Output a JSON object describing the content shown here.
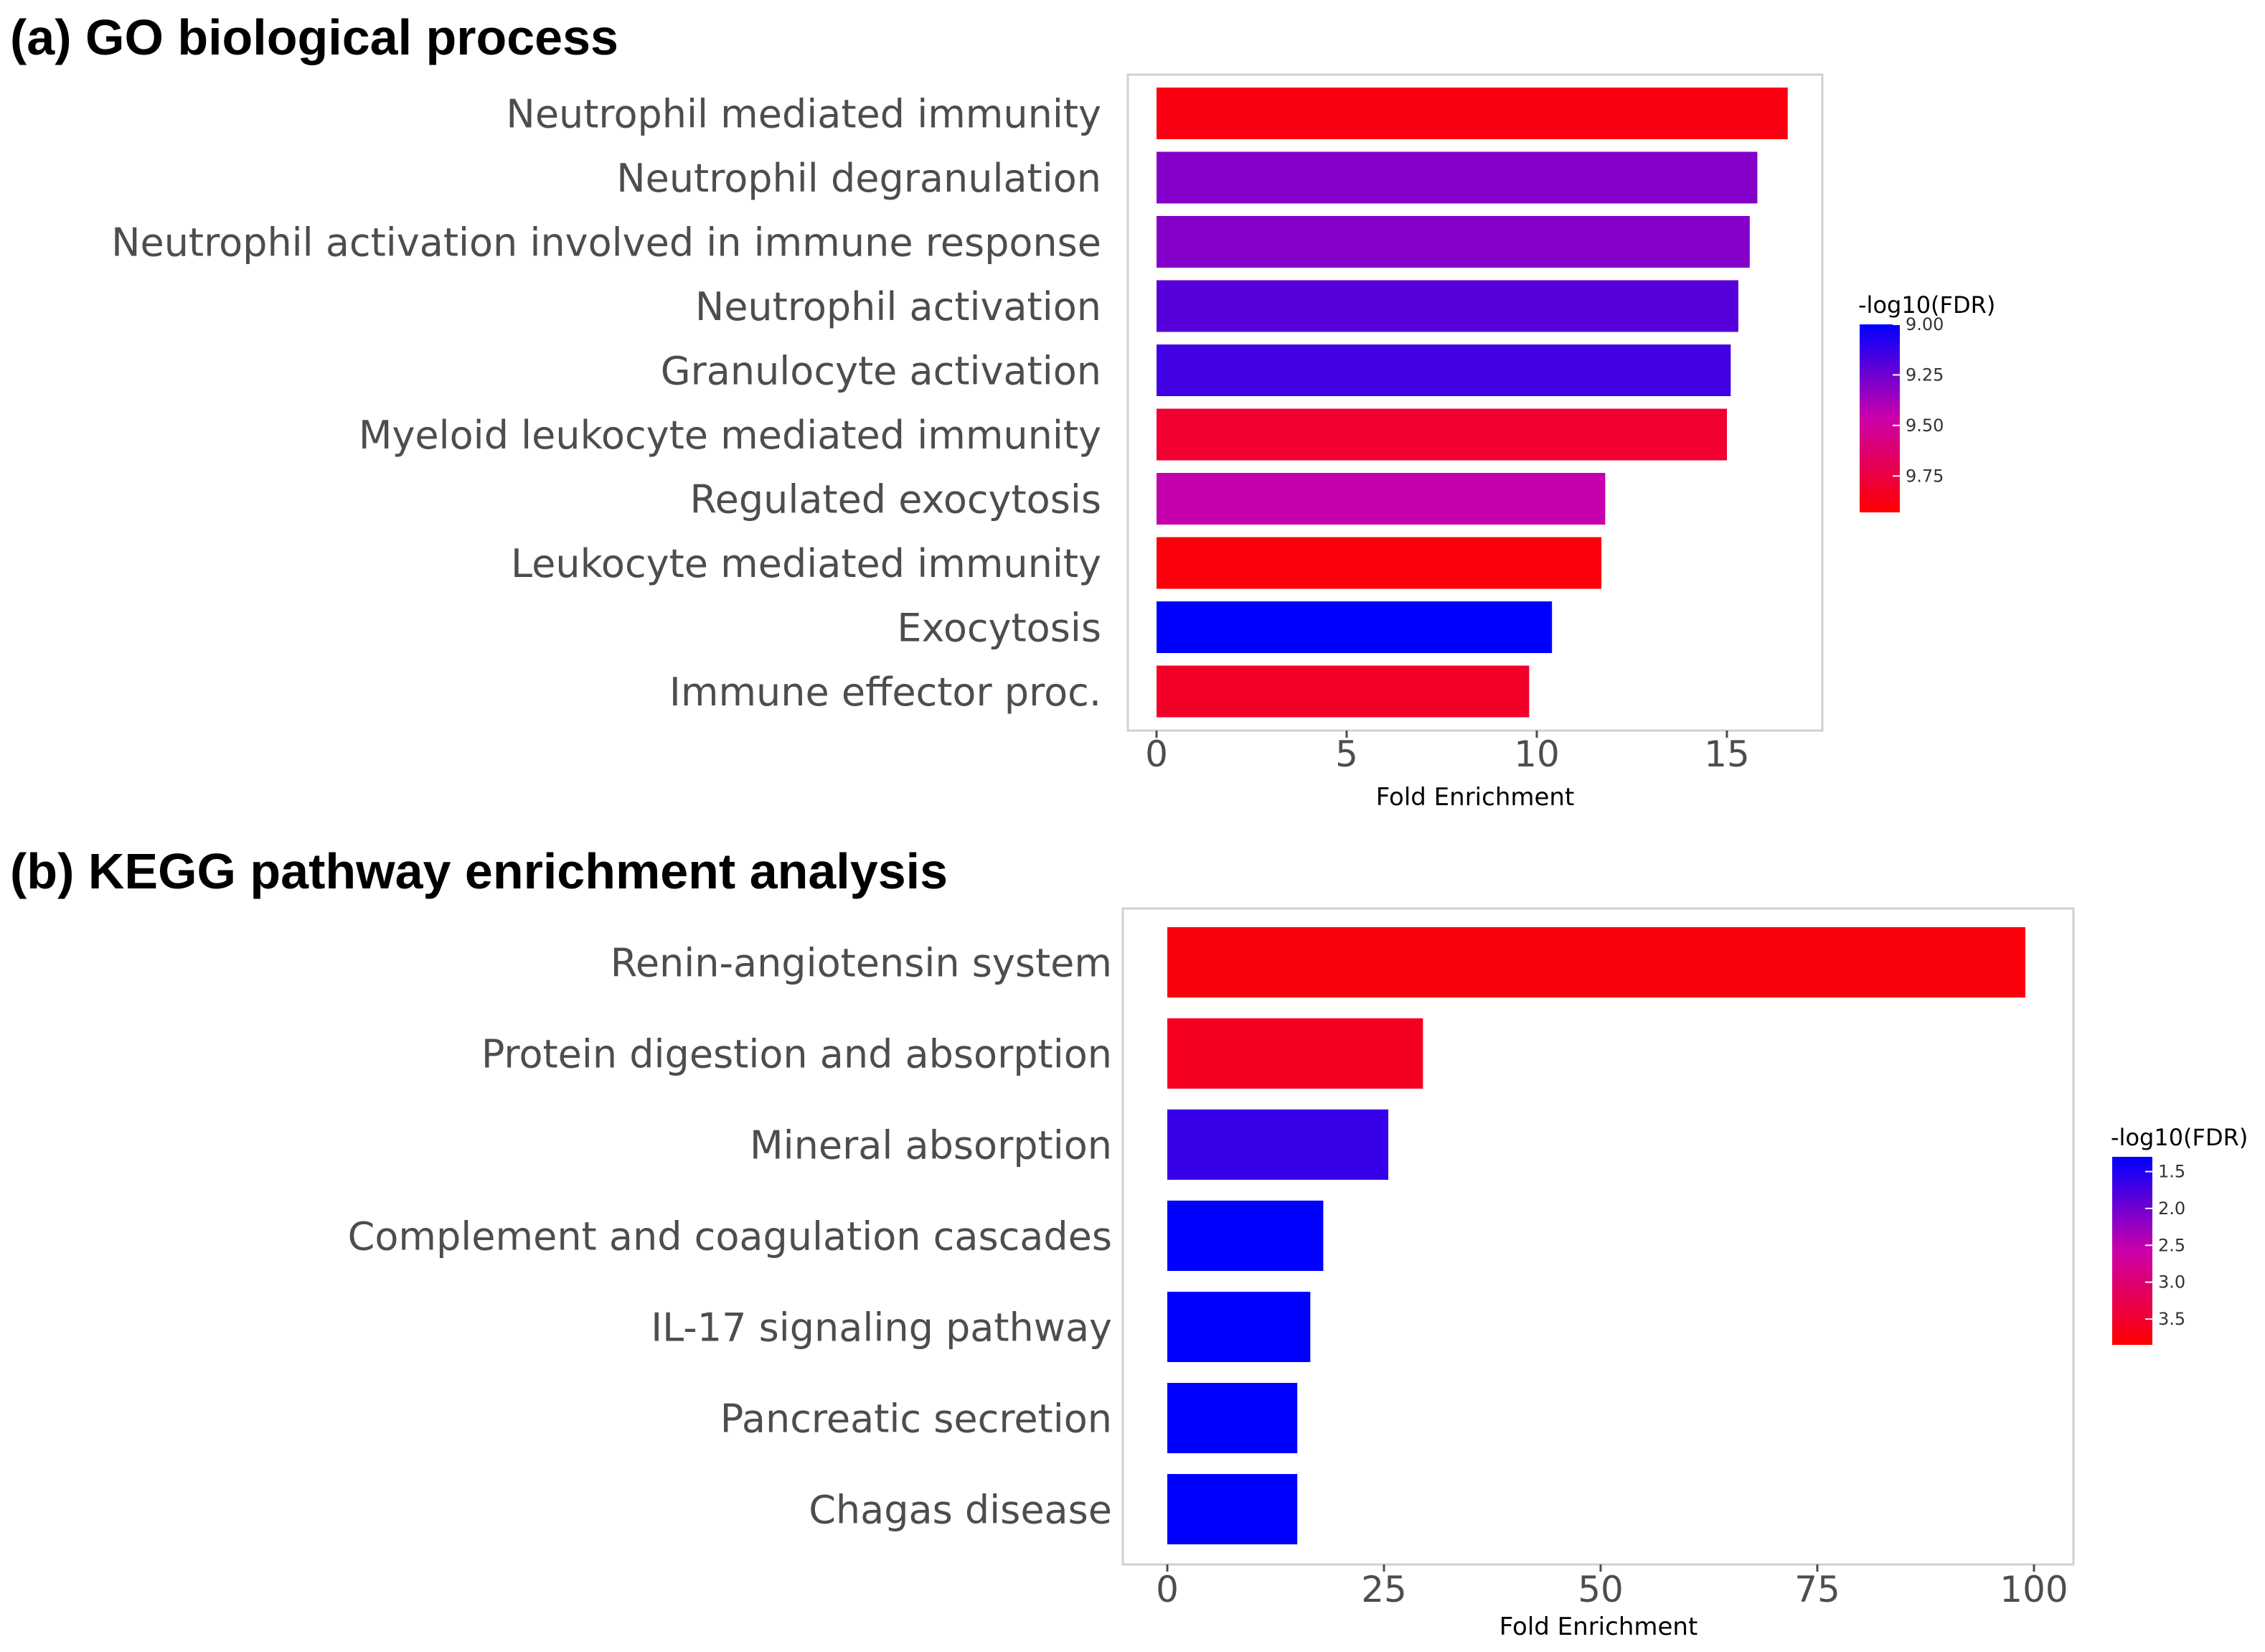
{
  "chart_data": [
    {
      "type": "bar",
      "orientation": "horizontal",
      "title": "(a) GO biological process",
      "xlabel": "Fold Enrichment",
      "ylabel": "",
      "xlim": [
        0,
        17.5
      ],
      "xticks": [
        0,
        5,
        10,
        15
      ],
      "categories": [
        "Neutrophil mediated immunity",
        "Neutrophil degranulation",
        "Neutrophil activation involved in immune response",
        "Neutrophil activation",
        "Granulocyte activation",
        "Myeloid leukocyte mediated immunity",
        "Regulated exocytosis",
        "Leukocyte mediated immunity",
        "Exocytosis",
        "Immune effector proc."
      ],
      "values": [
        16.6,
        15.8,
        15.6,
        15.3,
        15.1,
        15.0,
        11.8,
        11.7,
        10.4,
        9.8
      ],
      "color_values": [
        9.88,
        9.3,
        9.3,
        9.2,
        9.15,
        9.8,
        9.45,
        9.9,
        9.0,
        9.82
      ],
      "color_legend": {
        "title": "-log10(FDR)",
        "ticks": [
          "9.00",
          "9.25",
          "9.50",
          "9.75"
        ],
        "tick_values": [
          9.0,
          9.25,
          9.5,
          9.75
        ],
        "range": [
          9.0,
          9.93
        ],
        "low_color": "#0000ff",
        "high_color": "#ff0000"
      },
      "legend_position": "right",
      "grid": false
    },
    {
      "type": "bar",
      "orientation": "horizontal",
      "title": "(b) KEGG pathway enrichment analysis",
      "xlabel": "Fold Enrichment",
      "ylabel": "",
      "xlim": [
        -5,
        104
      ],
      "xticks": [
        0,
        25,
        50,
        75,
        100
      ],
      "categories": [
        "Renin-angiotensin system",
        "Protein digestion and absorption",
        "Mineral absorption",
        "Complement and coagulation cascades",
        "IL-17 signaling pathway",
        "Pancreatic secretion",
        "Chagas disease"
      ],
      "values": [
        99.0,
        29.5,
        25.5,
        18.0,
        16.5,
        15.0,
        15.0
      ],
      "color_values": [
        3.75,
        3.6,
        1.65,
        1.3,
        1.3,
        1.3,
        1.3
      ],
      "color_legend": {
        "title": "-log10(FDR)",
        "ticks": [
          "1.5",
          "2.0",
          "2.5",
          "3.0",
          "3.5"
        ],
        "tick_values": [
          1.5,
          2.0,
          2.5,
          3.0,
          3.5
        ],
        "range": [
          1.3,
          3.85
        ],
        "low_color": "#0000ff",
        "high_color": "#ff0000"
      },
      "legend_position": "right",
      "grid": false
    }
  ]
}
